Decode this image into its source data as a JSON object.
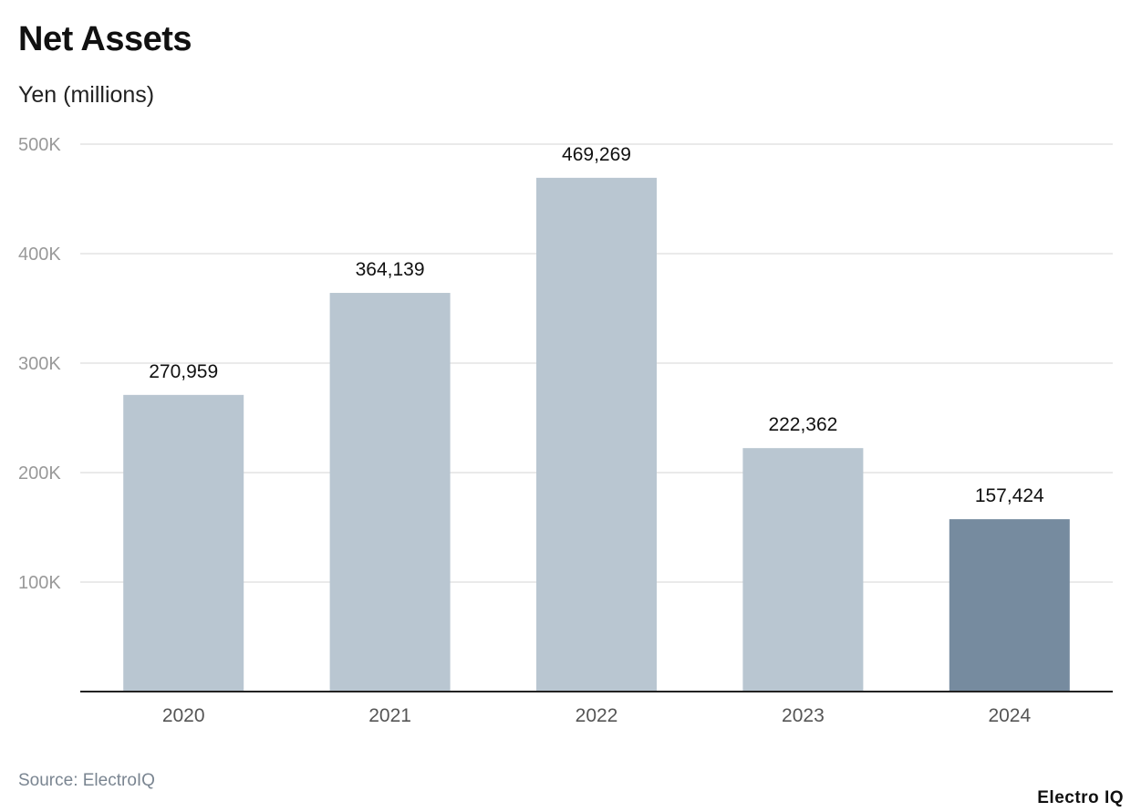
{
  "chart_data": {
    "type": "bar",
    "title": "Net Assets",
    "subtitle": "Yen (millions)",
    "categories": [
      "2020",
      "2021",
      "2022",
      "2023",
      "2024"
    ],
    "values": [
      270959,
      364139,
      469269,
      222362,
      157424
    ],
    "data_labels": [
      "270,959",
      "364,139",
      "469,269",
      "222,362",
      "157,424"
    ],
    "ylim": [
      0,
      500000
    ],
    "yticks": [
      100000,
      200000,
      300000,
      400000,
      500000
    ],
    "ytick_labels": [
      "100K",
      "200K",
      "300K",
      "400K",
      "500K"
    ],
    "grid": true,
    "colors": {
      "default": "#b9c6d1",
      "highlight": "#768b9f"
    },
    "highlight_index": 4
  },
  "source": "Source: ElectroIQ",
  "logo": "Electro IQ"
}
